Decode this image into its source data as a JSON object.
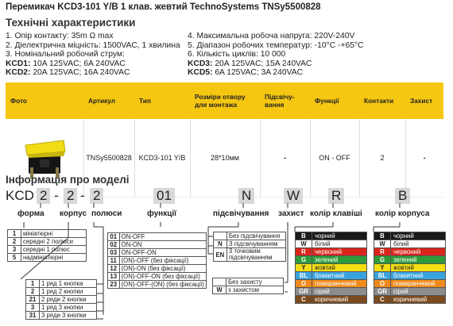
{
  "title": "Перемикач KCD3-101 Y/B 1 клав. жевтий TechnoSystems TNSy5500828",
  "specs_heading": "Технічні характеристики",
  "specs_left": [
    "1. Опір контакту: 35m Ω  max",
    "2. Діелектрична міцність:  1500VAC, 1 хвилина",
    "3. Номінальний робочий струм:"
  ],
  "specs_left_ratings": [
    {
      "k": "KCD1:",
      "v": " 10A 125VAC; 6A 240VAC"
    },
    {
      "k": "KCD2:",
      "v": " 20A 125VAC; 16A 240VAC"
    }
  ],
  "specs_right": [
    "4. Максимальна робоча напруга: 220V-240V",
    "5. Діапазон робочих температур: -10°C -+65°C",
    "6. Кількість циклів: 10 000"
  ],
  "specs_right_ratings": [
    {
      "k": "KCD3:",
      "v": " 20A 125VAC; 15A 240VAC"
    },
    {
      "k": "KCD5:",
      "v": " 6A 125VAC; 3A 240VAC"
    }
  ],
  "table": {
    "headers": [
      "Фото",
      "Артикул",
      "Тип",
      "Розміри отвору для монтажа",
      "Підсвічу-вання",
      "Функції",
      "Контакти",
      "Захист"
    ],
    "row": {
      "sku": "TNSy5500828",
      "type": "KCD3-101 Y/B",
      "size": "28*10мм",
      "backlight": "-",
      "function": "ON - OFF",
      "contacts": "2",
      "protection": "-"
    }
  },
  "model_heading": "Інформація про моделі",
  "model_code": {
    "prefix": "KCD",
    "c1": "2",
    "dash1": "-",
    "c2": "2",
    "dash2": "-",
    "c3": "2",
    "c4": "01",
    "c5": "N",
    "c6": "W",
    "c7": "R",
    "c8": "B"
  },
  "model_labels": {
    "form": "форма",
    "body": "корпус",
    "poles": "полюси",
    "functions": "функції",
    "backlight": "підсвічування",
    "protection": "захист",
    "key_color": "колір клавіші",
    "body_color": "колір корпуса"
  },
  "form_opts": [
    {
      "k": "1",
      "v": "мініатюрні"
    },
    {
      "k": "2",
      "v": "середні 2 полюси"
    },
    {
      "k": "3",
      "v": "середні 1 полюс"
    },
    {
      "k": "5",
      "v": "надмініатюрні"
    }
  ],
  "func_opts": [
    {
      "k": "01",
      "v": "ON-OFF"
    },
    {
      "k": "02",
      "v": "ON-ON"
    },
    {
      "k": "03",
      "v": "ON-OFF-ON"
    },
    {
      "k": "11",
      "v": "(ON)-OFF (без фіксації)"
    },
    {
      "k": "12",
      "v": "(ON)-ON (без фіксації)"
    },
    {
      "k": "13",
      "v": "(ON)-OFF-ON (без фіксації)"
    },
    {
      "k": "23",
      "v": "(ON)-OFF-(ON) (без фіксації)"
    }
  ],
  "poles_opts": [
    {
      "k": "1",
      "v": "1 ряд 1 кнопка"
    },
    {
      "k": "2",
      "v": "1 ряд 2 кнопки"
    },
    {
      "k": "21",
      "v": "2 ряди 2 кнопки"
    },
    {
      "k": "3",
      "v": "1 ряд 3 кнопки"
    },
    {
      "k": "31",
      "v": "3 ряди 3 кнопки"
    }
  ],
  "backlight_opts": [
    {
      "k": "",
      "v": "Без підсвічування"
    },
    {
      "k": "N",
      "v": "З підсвічуванням"
    },
    {
      "k": "EN",
      "v": "3 точковим підсвічуванням"
    }
  ],
  "protection_opts": [
    {
      "k": "",
      "v": "Без захисту"
    },
    {
      "k": "W",
      "v": "з захистом"
    }
  ],
  "key_colors": [
    {
      "k": "B",
      "v": "чорний",
      "bg": "#1a1a1a",
      "fg": "#ffffff"
    },
    {
      "k": "W",
      "v": "білий",
      "bg": "#ffffff",
      "fg": "#222222"
    },
    {
      "k": "R",
      "v": "червоний",
      "bg": "#d9261c",
      "fg": "#ffffff"
    },
    {
      "k": "G",
      "v": "зелений",
      "bg": "#2e9b3a",
      "fg": "#ffffff"
    },
    {
      "k": "Y",
      "v": "жовтий",
      "bg": "#f4de12",
      "fg": "#222222"
    },
    {
      "k": "BL",
      "v": "блакитний",
      "bg": "#3aa2dc",
      "fg": "#ffffff"
    },
    {
      "k": "O",
      "v": "помаранчевий",
      "bg": "#f08a1c",
      "fg": "#ffffff"
    },
    {
      "k": "GR",
      "v": "сірий",
      "bg": "#8c8c8c",
      "fg": "#ffffff"
    },
    {
      "k": "C",
      "v": "коричневий",
      "bg": "#7a4a1e",
      "fg": "#ffffff"
    }
  ],
  "accent": "#f6c711"
}
